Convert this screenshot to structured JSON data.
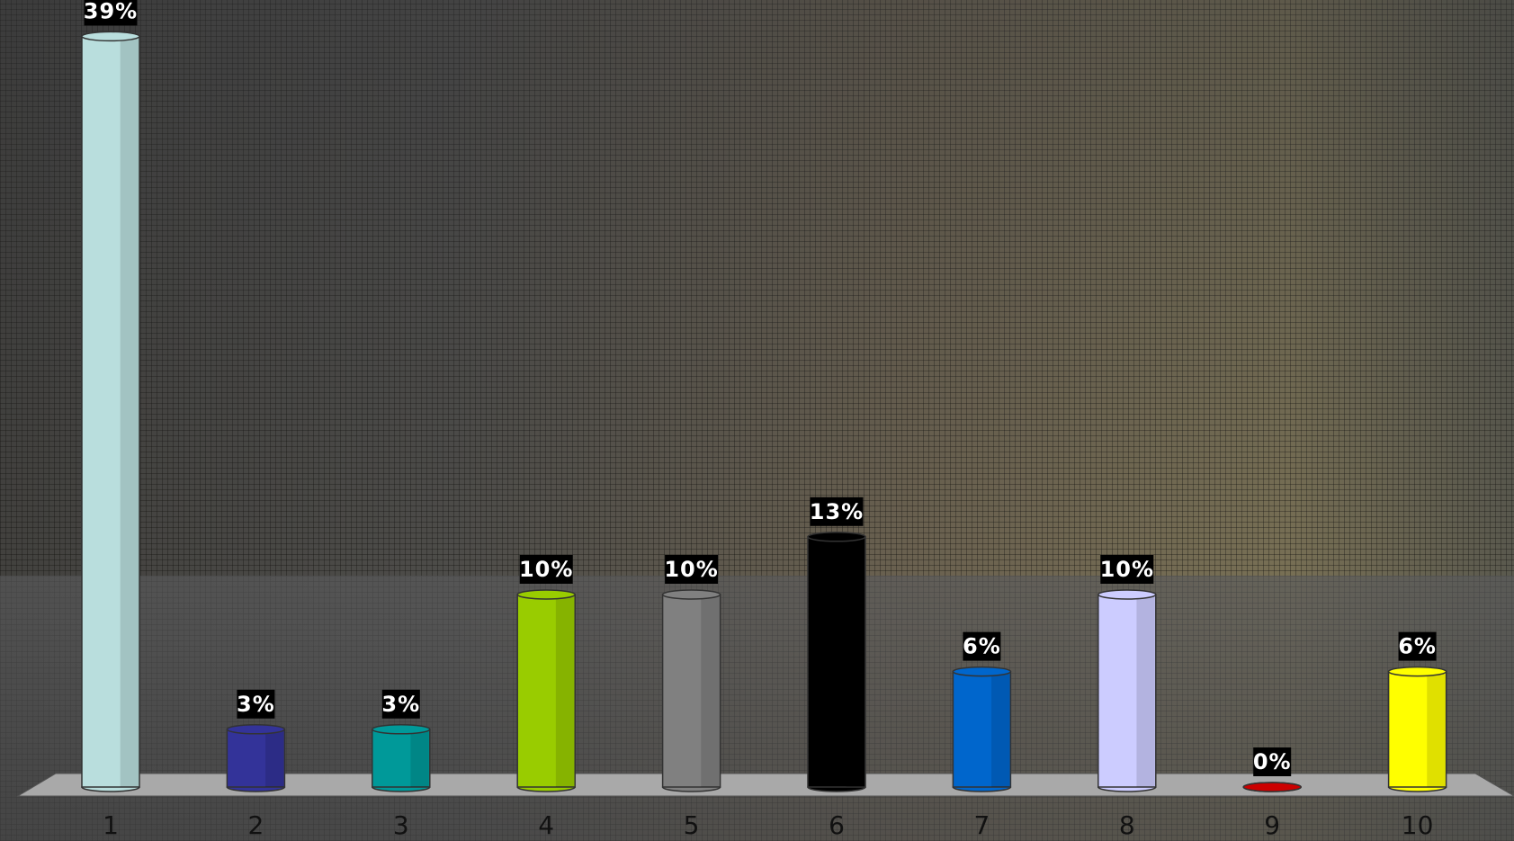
{
  "chart_data": {
    "type": "bar",
    "categories": [
      "1",
      "2",
      "3",
      "4",
      "5",
      "6",
      "7",
      "8",
      "9",
      "10"
    ],
    "values": [
      39,
      3,
      3,
      10,
      10,
      13,
      6,
      10,
      0,
      6
    ],
    "value_labels": [
      "39%",
      "3%",
      "3%",
      "10%",
      "10%",
      "13%",
      "6%",
      "10%",
      "0%",
      "6%"
    ],
    "colors": [
      "#b9dedd",
      "#333399",
      "#009999",
      "#99cc00",
      "#808080",
      "#000000",
      "#0066cc",
      "#ccccff",
      "#cc0000",
      "#ffff00"
    ]
  }
}
